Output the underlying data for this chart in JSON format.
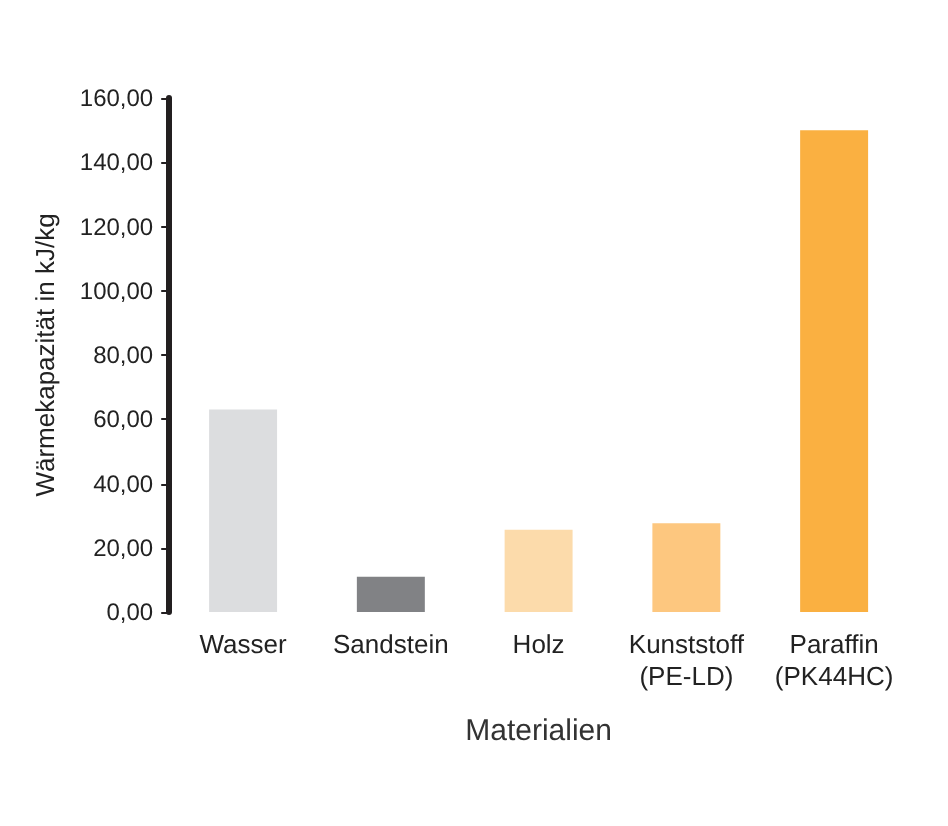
{
  "chart_data": {
    "type": "bar",
    "xlabel": "Materialien",
    "ylabel": "Wärmekapazität in kJ/kg",
    "categories": [
      "Wasser",
      "Sandstein",
      "Holz",
      "Kunststoff\n(PE-LD)",
      "Paraffin\n(PK44HC)"
    ],
    "values": [
      63,
      11,
      25.6,
      27.6,
      150
    ],
    "colors": [
      "#dcdddf",
      "#818285",
      "#fcdbab",
      "#fdc77f",
      "#fab041"
    ],
    "ylim": [
      0,
      160
    ],
    "yticks": [
      {
        "value": 0,
        "label": "0,00"
      },
      {
        "value": 20,
        "label": "20,00"
      },
      {
        "value": 40,
        "label": "40,00"
      },
      {
        "value": 60,
        "label": "60,00"
      },
      {
        "value": 80,
        "label": "80,00"
      },
      {
        "value": 100,
        "label": "100,00"
      },
      {
        "value": 120,
        "label": "120,00"
      },
      {
        "value": 140,
        "label": "140,00"
      },
      {
        "value": 160,
        "label": "160,00"
      }
    ],
    "grid": false
  }
}
